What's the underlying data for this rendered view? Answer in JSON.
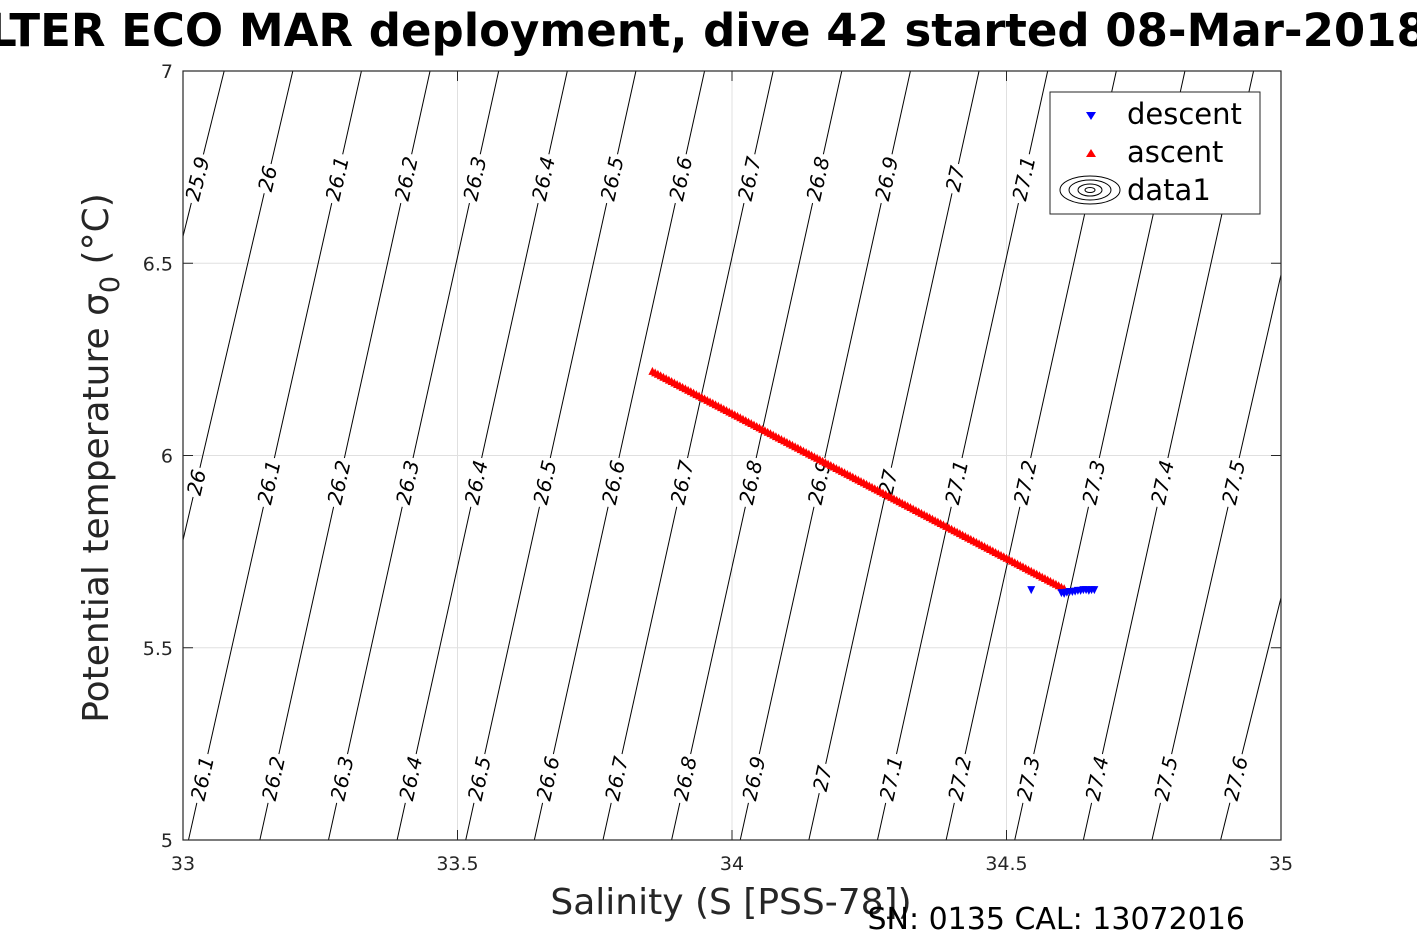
{
  "title": "LTER ECO MAR deployment, dive 42 started 08-Mar-2018",
  "footer": "SN: 0135  CAL: 13072016",
  "colors": {
    "descent": "#0000ff",
    "ascent": "#ff0000",
    "grid": "#e0e0e0",
    "contour": "#000000",
    "axis": "#262626"
  },
  "chart_data": {
    "type": "scatter",
    "xlabel": "Salinity (S [PSS-78])",
    "ylabel": "Potential temperature σ",
    "ylabel_sub": "0",
    "ylabel_unit": " (°C)",
    "xlim": [
      33,
      35
    ],
    "ylim": [
      5,
      7
    ],
    "xticks": [
      33,
      33.5,
      34,
      34.5,
      35
    ],
    "xtick_labels": [
      "33",
      "33.5",
      "34",
      "34.5",
      "35"
    ],
    "yticks": [
      5,
      5.5,
      6,
      6.5,
      7
    ],
    "ytick_labels": [
      "5",
      "5.5",
      "6",
      "6.5",
      "7"
    ],
    "grid": true,
    "legend_position": "top-right",
    "legend": [
      "descent",
      "ascent",
      "data1"
    ],
    "series": [
      {
        "name": "descent",
        "marker": "triangle-down",
        "points": [
          [
            34.545,
            5.65
          ],
          [
            34.6,
            5.642
          ],
          [
            34.605,
            5.64
          ],
          [
            34.61,
            5.643
          ],
          [
            34.615,
            5.645
          ],
          [
            34.62,
            5.645
          ],
          [
            34.625,
            5.646
          ],
          [
            34.63,
            5.648
          ],
          [
            34.635,
            5.648
          ],
          [
            34.64,
            5.65
          ],
          [
            34.645,
            5.65
          ],
          [
            34.65,
            5.648
          ],
          [
            34.655,
            5.65
          ],
          [
            34.66,
            5.65
          ]
        ]
      },
      {
        "name": "ascent",
        "marker": "triangle-up",
        "line": {
          "x_start": 33.855,
          "y_start": 6.22,
          "x_end": 34.605,
          "y_end": 5.655
        }
      }
    ],
    "contours": {
      "name": "data1",
      "levels": [
        {
          "label": "25.9",
          "x": [
            33,
            6.57
          ],
          "y": [
            33.075,
            7.0
          ]
        },
        {
          "label": "26",
          "x": [
            33,
            5.78
          ],
          "y": [
            33.2,
            7.0
          ]
        },
        {
          "label": "26.1",
          "x": [
            33.01,
            5.0
          ],
          "y": [
            33.325,
            7.0
          ]
        },
        {
          "label": "26.2",
          "x": [
            33.14,
            5.0
          ],
          "y": [
            33.45,
            7.0
          ]
        },
        {
          "label": "26.3",
          "x": [
            33.265,
            5.0
          ],
          "y": [
            33.575,
            7.0
          ]
        },
        {
          "label": "26.4",
          "x": [
            33.39,
            5.0
          ],
          "y": [
            33.7,
            7.0
          ]
        },
        {
          "label": "26.5",
          "x": [
            33.515,
            5.0
          ],
          "y": [
            33.825,
            7.0
          ]
        },
        {
          "label": "26.6",
          "x": [
            33.64,
            5.0
          ],
          "y": [
            33.95,
            7.0
          ]
        },
        {
          "label": "26.7",
          "x": [
            33.765,
            5.0
          ],
          "y": [
            34.075,
            7.0
          ]
        },
        {
          "label": "26.8",
          "x": [
            33.89,
            5.0
          ],
          "y": [
            34.2,
            7.0
          ]
        },
        {
          "label": "26.9",
          "x": [
            34.015,
            5.0
          ],
          "y": [
            34.325,
            7.0
          ]
        },
        {
          "label": "27",
          "x": [
            34.14,
            5.0
          ],
          "y": [
            34.45,
            7.0
          ]
        },
        {
          "label": "27.1",
          "x": [
            34.265,
            5.0
          ],
          "y": [
            34.575,
            7.0
          ]
        },
        {
          "label": "27.2",
          "x": [
            34.39,
            5.0
          ],
          "y": [
            34.7,
            7.0
          ]
        },
        {
          "label": "27.3",
          "x": [
            34.515,
            5.0
          ],
          "y": [
            34.825,
            7.0
          ]
        },
        {
          "label": "27.4",
          "x": [
            34.64,
            5.0
          ],
          "y": [
            34.95,
            7.0
          ]
        },
        {
          "label": "27.5",
          "x": [
            34.765,
            5.0
          ],
          "y": [
            35.0,
            6.47
          ]
        },
        {
          "label": "27.6",
          "x": [
            34.89,
            5.0
          ],
          "y": [
            35.0,
            5.63
          ]
        }
      ],
      "label_rows": {
        "top": [
          "25.9",
          "26",
          "26.1",
          "26.2",
          "26.3",
          "26.4",
          "26.5",
          "26.6",
          "26.7",
          "26.8",
          "26.9",
          "27",
          "27.1"
        ],
        "middle": [
          "26",
          "26.1",
          "26.2",
          "26.3",
          "26.4",
          "26.5",
          "26.6",
          "26.7",
          "26.8",
          "26.9",
          "27",
          "27.1",
          "27.2",
          "27.3",
          "27.4",
          "27.5"
        ],
        "bottom": [
          "26.1",
          "26.2",
          "26.3",
          "26.4",
          "26.5",
          "26.6",
          "26.7",
          "26.8",
          "26.9",
          "27",
          "27.1",
          "27.2",
          "27.3",
          "27.4",
          "27.5",
          "27.6"
        ]
      }
    }
  }
}
